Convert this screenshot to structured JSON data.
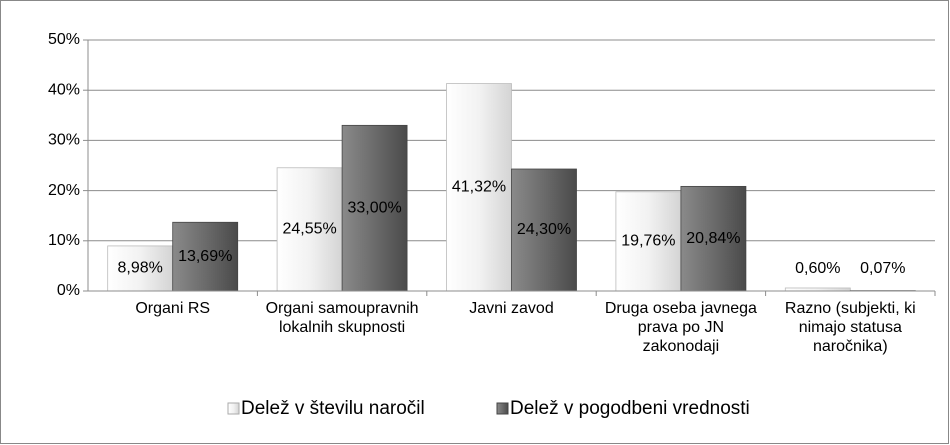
{
  "chart_data": {
    "type": "bar",
    "categories": [
      "Organi RS",
      "Organi samoupravnih lokalnih skupnosti",
      "Javni zavod",
      "Druga oseba javnega prava po JN zakonodaji",
      "Razno (subjekti, ki nimajo statusa naročnika)"
    ],
    "series": [
      {
        "name": "Delež v številu naročil",
        "color": "#e6e6e6",
        "values": [
          8.98,
          24.55,
          41.32,
          19.76,
          0.6
        ],
        "value_labels": [
          "8,98%",
          "24,55%",
          "41,32%",
          "19,76%",
          "0,60%"
        ]
      },
      {
        "name": "Delež v pogodbeni vrednosti",
        "color": "#6b6b6b",
        "values": [
          13.69,
          33.0,
          24.3,
          20.84,
          0.07
        ],
        "value_labels": [
          "13,69%",
          "33,00%",
          "24,30%",
          "20,84%",
          "0,07%"
        ]
      }
    ],
    "ylim": [
      0,
      50
    ],
    "yticks": [
      {
        "value": 0,
        "label": "0%"
      },
      {
        "value": 10,
        "label": "10%"
      },
      {
        "value": 20,
        "label": "20%"
      },
      {
        "value": 30,
        "label": "30%"
      },
      {
        "value": 40,
        "label": "40%"
      },
      {
        "value": 50,
        "label": "50%"
      }
    ],
    "grid": true,
    "legend": "bottom"
  }
}
